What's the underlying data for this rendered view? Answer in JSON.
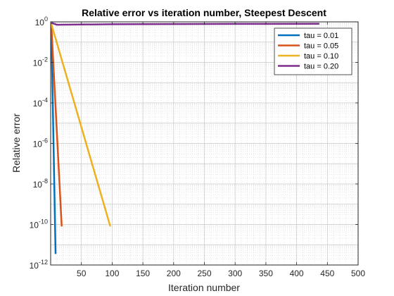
{
  "chart_data": {
    "type": "line",
    "title": "Relative error vs iteration number, Steepest Descent",
    "xlabel": "Iteration number",
    "ylabel": "Relative error",
    "xlim": [
      0,
      500
    ],
    "ylim": [
      1e-12,
      1
    ],
    "yscale": "log",
    "xticks": [
      50,
      100,
      150,
      200,
      250,
      300,
      350,
      400,
      450,
      500
    ],
    "yticks": [
      {
        "exp": 0,
        "label": "10",
        "sup": "0"
      },
      {
        "exp": -2,
        "label": "10",
        "sup": "-2"
      },
      {
        "exp": -4,
        "label": "10",
        "sup": "-4"
      },
      {
        "exp": -6,
        "label": "10",
        "sup": "-6"
      },
      {
        "exp": -8,
        "label": "10",
        "sup": "-8"
      },
      {
        "exp": -10,
        "label": "10",
        "sup": "-10"
      },
      {
        "exp": -12,
        "label": "10",
        "sup": "-12"
      }
    ],
    "grid": true,
    "minor_grid": true,
    "legend_position": "top-right",
    "series": [
      {
        "name": "tau = 0.01",
        "color": "#0072BD",
        "x": [
          1,
          8
        ],
        "y": [
          0.8,
          3.5e-12
        ]
      },
      {
        "name": "tau = 0.05",
        "color": "#D95319",
        "x": [
          1,
          18
        ],
        "y": [
          0.8,
          8e-11
        ]
      },
      {
        "name": "tau = 0.10",
        "color": "#EDB120",
        "x": [
          1,
          97
        ],
        "y": [
          0.8,
          8e-11
        ]
      },
      {
        "name": "tau = 0.20",
        "color": "#7E2F8E",
        "x": [
          1,
          10,
          100,
          200,
          300,
          437
        ],
        "y": [
          0.9,
          0.72,
          0.76,
          0.78,
          0.79,
          0.8
        ]
      }
    ]
  }
}
